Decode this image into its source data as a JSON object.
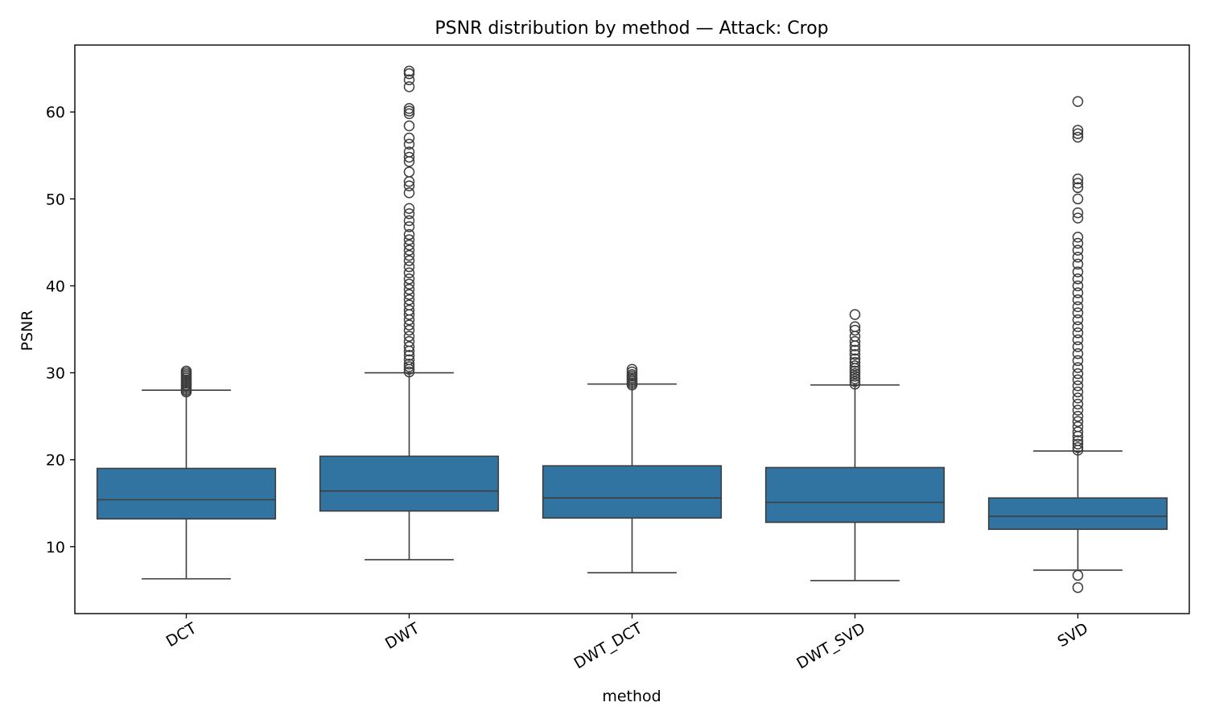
{
  "chart_data": {
    "type": "box",
    "title": "PSNR distribution by method — Attack: Crop",
    "xlabel": "method",
    "ylabel": "PSNR",
    "ylim": [
      2.3,
      67.7
    ],
    "yticks": [
      10,
      20,
      30,
      40,
      50,
      60
    ],
    "grid": false,
    "legend": "none",
    "box_color": "#3274a1",
    "line_color": "#3d3d3d",
    "categories": [
      "DCT",
      "DWT",
      "DWT_DCT",
      "DWT_SVD",
      "SVD"
    ],
    "boxes": [
      {
        "label": "DCT",
        "whisker_low": 6.3,
        "q1": 13.2,
        "median": 15.4,
        "q3": 19.0,
        "whisker_high": 28.0,
        "outliers": [
          27.8,
          28.0,
          28.2,
          28.4,
          28.6,
          28.8,
          29.0,
          29.2,
          29.4,
          29.6,
          29.8,
          30.0,
          30.2
        ]
      },
      {
        "label": "DWT",
        "whisker_low": 8.5,
        "q1": 14.1,
        "median": 16.4,
        "q3": 20.4,
        "whisker_high": 30.0,
        "outliers": [
          30.1,
          30.4,
          30.7,
          31.0,
          31.5,
          32.0,
          32.5,
          33.0,
          33.6,
          34.2,
          34.9,
          35.5,
          36.1,
          36.7,
          37.2,
          37.8,
          38.4,
          39.0,
          39.6,
          40.2,
          40.8,
          41.5,
          42.2,
          42.9,
          43.5,
          44.1,
          44.7,
          45.3,
          45.9,
          46.8,
          47.5,
          48.3,
          48.9,
          50.7,
          51.5,
          52.0,
          53.1,
          54.3,
          54.8,
          55.4,
          56.3,
          57.0,
          58.4,
          59.8,
          60.1,
          60.4,
          62.9,
          63.7,
          64.4,
          64.7
        ]
      },
      {
        "label": "DWT_DCT",
        "whisker_low": 7.0,
        "q1": 13.3,
        "median": 15.6,
        "q3": 19.3,
        "whisker_high": 28.7,
        "outliers": [
          28.6,
          28.8,
          29.0,
          29.2,
          29.4,
          29.6,
          29.8,
          30.1,
          30.4
        ]
      },
      {
        "label": "DWT_SVD",
        "whisker_low": 6.1,
        "q1": 12.8,
        "median": 15.1,
        "q3": 19.1,
        "whisker_high": 28.6,
        "outliers": [
          28.7,
          29.0,
          29.3,
          29.6,
          29.9,
          30.2,
          30.5,
          30.8,
          31.2,
          31.6,
          32.1,
          32.6,
          33.1,
          33.6,
          34.2,
          34.9,
          35.3,
          36.7
        ]
      },
      {
        "label": "SVD",
        "whisker_low": 7.3,
        "q1": 12.0,
        "median": 13.5,
        "q3": 15.6,
        "whisker_high": 21.0,
        "outliers": [
          5.3,
          6.7,
          21.1,
          21.4,
          21.8,
          22.2,
          22.7,
          23.2,
          23.8,
          24.4,
          25.0,
          25.7,
          26.4,
          27.1,
          27.8,
          28.5,
          29.2,
          29.9,
          30.6,
          31.4,
          32.2,
          33.0,
          33.8,
          34.6,
          35.3,
          36.1,
          36.9,
          37.6,
          38.4,
          39.2,
          40.0,
          40.8,
          41.6,
          42.5,
          43.3,
          44.1,
          44.9,
          45.6,
          47.8,
          48.4,
          50.0,
          51.3,
          51.8,
          52.3,
          57.1,
          57.5,
          57.9,
          61.2
        ]
      }
    ]
  }
}
